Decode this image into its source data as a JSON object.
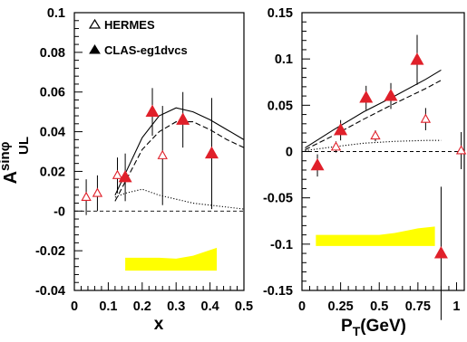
{
  "chart_data": [
    {
      "type": "scatter",
      "xlabel": "x",
      "ylabel": "A",
      "ylabel_sup": "sinφ",
      "ylabel_sub": "UL",
      "xlim": [
        0,
        0.5
      ],
      "ylim": [
        -0.04,
        0.1
      ],
      "xticks": [
        0,
        0.1,
        0.2,
        0.3,
        0.4,
        0.5
      ],
      "xtick_labels": [
        "0",
        "0.1",
        "0.2",
        "0.3",
        "0.4",
        "0.5"
      ],
      "yticks": [
        -0.04,
        -0.02,
        0,
        0.02,
        0.04,
        0.06,
        0.08,
        0.1
      ],
      "ytick_labels": [
        "-0.04",
        "-0.02",
        "-0",
        "0.02",
        "0.04",
        "0.06",
        "0.08",
        "0.1"
      ],
      "legend": {
        "position": "top-left",
        "entries": [
          {
            "label": "HERMES",
            "marker": "open-triangle"
          },
          {
            "label": "CLAS-eg1dvcs",
            "marker": "filled-triangle"
          }
        ]
      },
      "series": [
        {
          "marker": "open-triangle",
          "color": "#e0202a",
          "points": [
            {
              "x": 0.035,
              "y": 0.007,
              "err": 0.009
            },
            {
              "x": 0.068,
              "y": 0.009,
              "err": 0.009
            },
            {
              "x": 0.127,
              "y": 0.018,
              "err": 0.009
            },
            {
              "x": 0.26,
              "y": 0.028,
              "err": 0.025
            }
          ]
        },
        {
          "marker": "filled-triangle",
          "color": "#e0202a",
          "points": [
            {
              "x": 0.15,
              "y": 0.017,
              "err": 0.012
            },
            {
              "x": 0.23,
              "y": 0.05,
              "err": 0.012
            },
            {
              "x": 0.32,
              "y": 0.046,
              "err": 0.014
            },
            {
              "x": 0.405,
              "y": 0.029,
              "err": 0.028
            }
          ]
        }
      ],
      "curves": [
        {
          "style": "solid",
          "x": [
            0.12,
            0.2,
            0.25,
            0.3,
            0.35,
            0.4,
            0.45,
            0.5
          ],
          "y": [
            0.008,
            0.037,
            0.048,
            0.052,
            0.05,
            0.046,
            0.041,
            0.036
          ]
        },
        {
          "style": "dashed",
          "x": [
            0.12,
            0.2,
            0.25,
            0.3,
            0.35,
            0.4,
            0.45,
            0.5
          ],
          "y": [
            0.005,
            0.031,
            0.04,
            0.045,
            0.045,
            0.041,
            0.036,
            0.032
          ]
        },
        {
          "style": "dotted",
          "x": [
            0.12,
            0.15,
            0.2,
            0.25,
            0.3,
            0.35,
            0.4,
            0.45,
            0.5
          ],
          "y": [
            0.007,
            0.009,
            0.011,
            0.008,
            0.006,
            0.004,
            0.003,
            0.002,
            0.001
          ]
        },
        {
          "style": "dashed-zero",
          "x": [
            0,
            0.5
          ],
          "y": [
            0,
            0
          ]
        }
      ],
      "systematic_band": {
        "color": "#ffff00",
        "x": [
          0.15,
          0.2,
          0.25,
          0.3,
          0.35,
          0.42
        ],
        "y_high": [
          -0.0235,
          -0.0235,
          -0.0235,
          -0.024,
          -0.0225,
          -0.0185
        ],
        "y_low": [
          -0.03,
          -0.03,
          -0.03,
          -0.03,
          -0.03,
          -0.03
        ]
      }
    },
    {
      "type": "scatter",
      "xlabel": "P",
      "xlabel_sub": "T",
      "xlabel_unit": "(GeV)",
      "xlim": [
        0,
        1.05
      ],
      "ylim": [
        -0.15,
        0.15
      ],
      "xticks": [
        0,
        0.25,
        0.5,
        0.75,
        1
      ],
      "xtick_labels": [
        "0",
        "0.25",
        "0.5",
        "0.75",
        "1"
      ],
      "yticks": [
        -0.15,
        -0.1,
        -0.05,
        0,
        0.05,
        0.1,
        0.15
      ],
      "ytick_labels": [
        "-0.15",
        "-0.1",
        "-0.05",
        "0",
        "0.05",
        "0.1",
        "0.15"
      ],
      "series": [
        {
          "marker": "open-triangle",
          "color": "#e0202a",
          "points": [
            {
              "x": 0.22,
              "y": 0.005,
              "err": 0.006
            },
            {
              "x": 0.475,
              "y": 0.017,
              "err": 0.006
            },
            {
              "x": 0.8,
              "y": 0.035,
              "err": 0.012
            },
            {
              "x": 1.03,
              "y": 0.001,
              "err": 0.02
            }
          ]
        },
        {
          "marker": "filled-triangle",
          "color": "#e0202a",
          "points": [
            {
              "x": 0.1,
              "y": -0.015,
              "err": 0.012
            },
            {
              "x": 0.25,
              "y": 0.023,
              "err": 0.011
            },
            {
              "x": 0.415,
              "y": 0.058,
              "err": 0.013
            },
            {
              "x": 0.575,
              "y": 0.06,
              "err": 0.014
            },
            {
              "x": 0.745,
              "y": 0.099,
              "err": 0.027
            },
            {
              "x": 0.9,
              "y": -0.11,
              "err": 0.072
            }
          ]
        }
      ],
      "curves": [
        {
          "style": "solid",
          "x": [
            0.02,
            0.2,
            0.4,
            0.6,
            0.8,
            0.9
          ],
          "y": [
            0.004,
            0.023,
            0.043,
            0.06,
            0.078,
            0.088
          ]
        },
        {
          "style": "dashed",
          "x": [
            0.02,
            0.2,
            0.4,
            0.6,
            0.8,
            0.9
          ],
          "y": [
            0.002,
            0.017,
            0.035,
            0.052,
            0.068,
            0.077
          ]
        },
        {
          "style": "dotted",
          "x": [
            0.02,
            0.2,
            0.4,
            0.6,
            0.8,
            0.9
          ],
          "y": [
            0.001,
            0.005,
            0.009,
            0.011,
            0.012,
            0.012
          ]
        },
        {
          "style": "dashed-zero",
          "x": [
            0,
            1.05
          ],
          "y": [
            0,
            0
          ]
        }
      ],
      "systematic_band": {
        "color": "#ffff00",
        "x": [
          0.09,
          0.3,
          0.5,
          0.6,
          0.75,
          0.86
        ],
        "y_high": [
          -0.09,
          -0.09,
          -0.09,
          -0.088,
          -0.083,
          -0.081
        ],
        "y_low": [
          -0.102,
          -0.102,
          -0.102,
          -0.102,
          -0.102,
          -0.102
        ]
      }
    }
  ]
}
